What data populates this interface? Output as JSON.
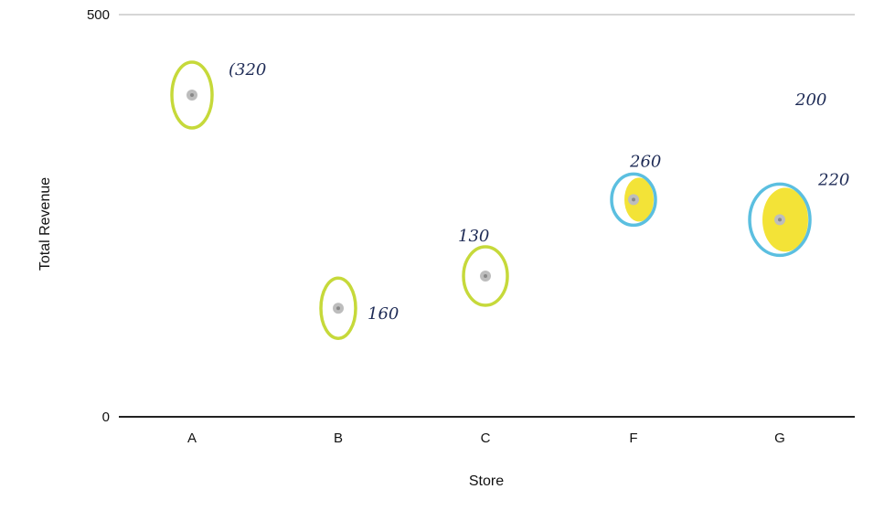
{
  "chart_data": {
    "type": "scatter",
    "title": "",
    "xlabel": "Store",
    "ylabel": "Total Revenue",
    "categories": [
      "A",
      "B",
      "C",
      "F",
      "G"
    ],
    "values": [
      400,
      135,
      175,
      270,
      245
    ],
    "ylim": [
      0,
      500
    ],
    "yticks": [
      0,
      500
    ],
    "grid": false,
    "point_color": "#bdbdbd",
    "annotations": [
      {
        "category": "A",
        "text": "(320",
        "circle_color": "#c6d93a",
        "fill": "none"
      },
      {
        "category": "B",
        "text": "160",
        "circle_color": "#c6d93a",
        "fill": "none"
      },
      {
        "category": "C",
        "text": "130",
        "circle_color": "#c6d93a",
        "fill": "none"
      },
      {
        "category": "F",
        "text": "260",
        "circle_color": "#5bbfe0",
        "fill": "#f2e12c"
      },
      {
        "category": "G",
        "text": "220",
        "circle_color": "#5bbfe0",
        "fill": "#f2e12c"
      }
    ],
    "extra_scribble": "200"
  }
}
